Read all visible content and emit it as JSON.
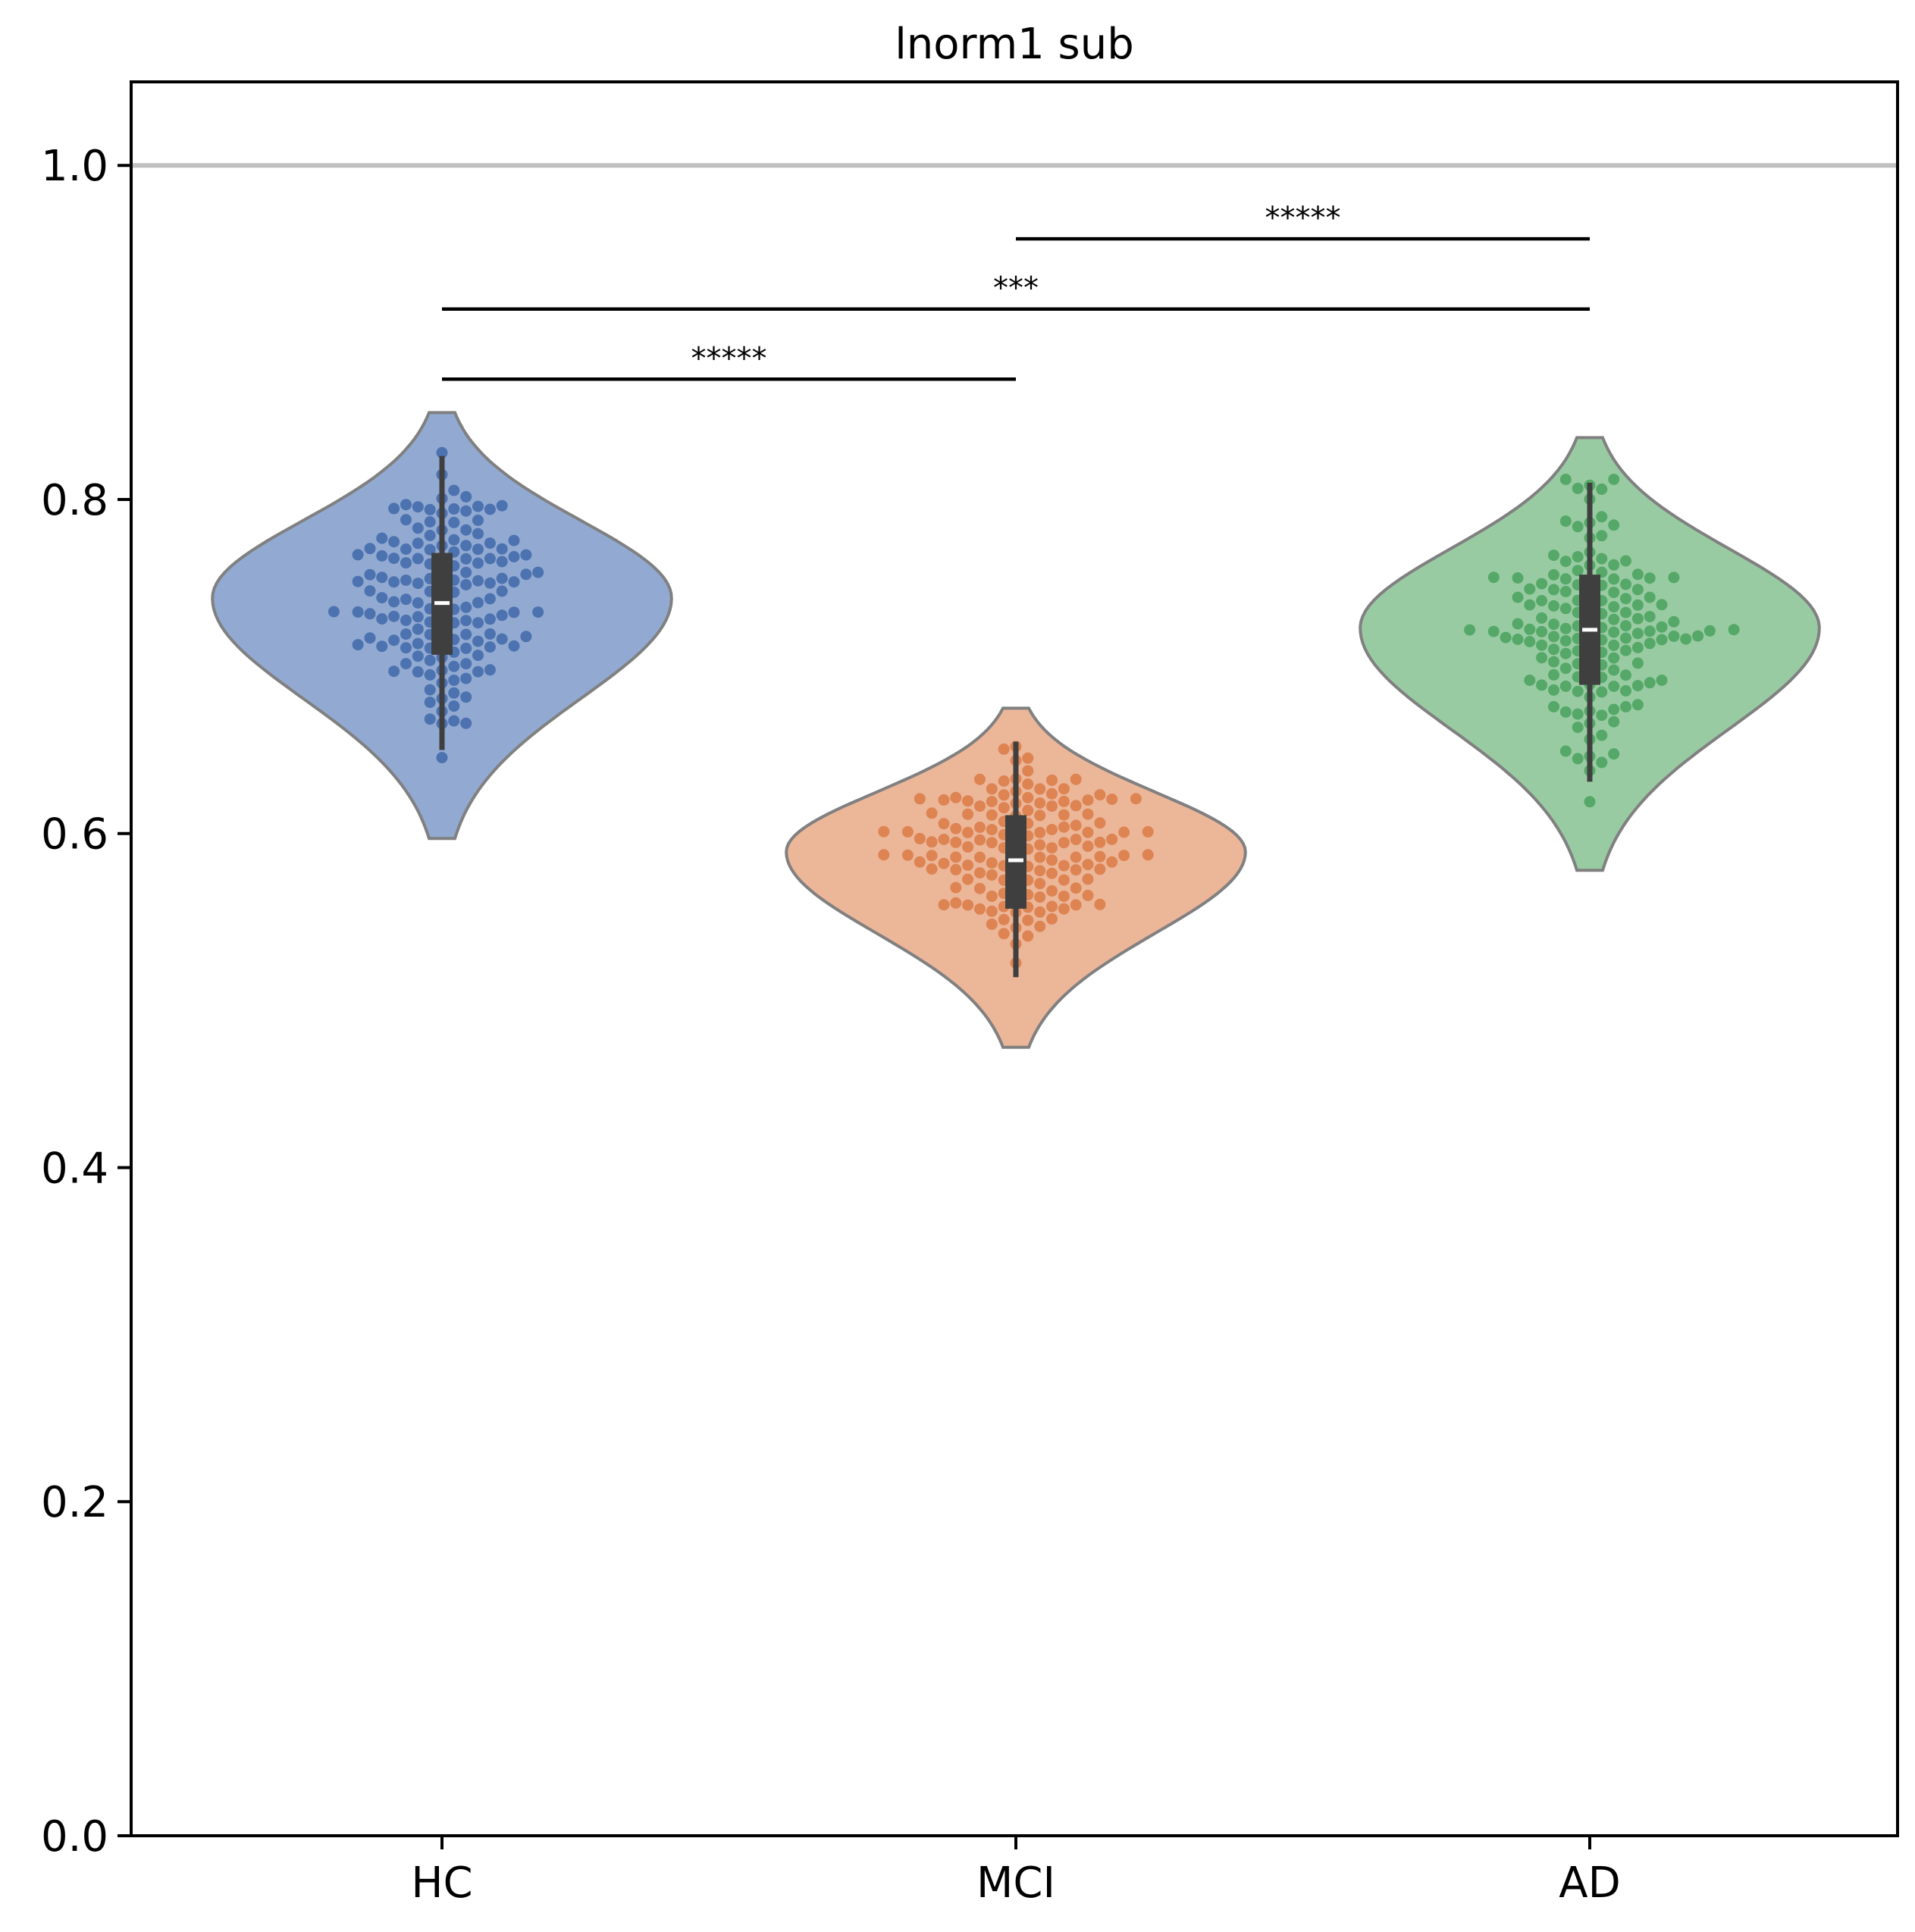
{
  "chart_data": {
    "type": "violin",
    "title": "lnorm1 sub",
    "xlabel": "",
    "ylabel": "",
    "ylim": [
      0.0,
      1.05
    ],
    "yticks": [
      0.0,
      0.2,
      0.4,
      0.6,
      0.8,
      1.0
    ],
    "ytick_labels": [
      "0.0",
      "0.2",
      "0.4",
      "0.6",
      "0.8",
      "1.0"
    ],
    "categories": [
      "HC",
      "MCI",
      "AD"
    ],
    "reference_line": {
      "y": 1.0,
      "color": "#c0c0c0"
    },
    "groups": [
      {
        "name": "HC",
        "color": "#4c72b0",
        "fill": "#92aad2",
        "violin": {
          "min": 0.597,
          "max": 0.852,
          "mode": 0.741,
          "half_width": 0.4
        },
        "box": {
          "whisker_low": 0.65,
          "q1": 0.707,
          "median": 0.738,
          "q3": 0.768,
          "whisker_high": 0.826
        },
        "n_points": 150
      },
      {
        "name": "MCI",
        "color": "#dd8452",
        "fill": "#ecb699",
        "violin": {
          "min": 0.472,
          "max": 0.675,
          "mode": 0.589,
          "half_width": 0.4
        },
        "box": {
          "whisker_low": 0.514,
          "q1": 0.555,
          "median": 0.584,
          "q3": 0.611,
          "whisker_high": 0.655
        },
        "n_points": 150
      },
      {
        "name": "AD",
        "color": "#55a868",
        "fill": "#99cba3",
        "violin": {
          "min": 0.578,
          "max": 0.837,
          "mode": 0.723,
          "half_width": 0.4
        },
        "box": {
          "whisker_low": 0.631,
          "q1": 0.689,
          "median": 0.722,
          "q3": 0.755,
          "whisker_high": 0.81
        },
        "n_points": 150
      }
    ],
    "significance": [
      {
        "from": "HC",
        "to": "MCI",
        "y": 0.872,
        "label": "*****"
      },
      {
        "from": "HC",
        "to": "AD",
        "y": 0.914,
        "label": "***"
      },
      {
        "from": "MCI",
        "to": "AD",
        "y": 0.956,
        "label": "*****"
      }
    ]
  }
}
